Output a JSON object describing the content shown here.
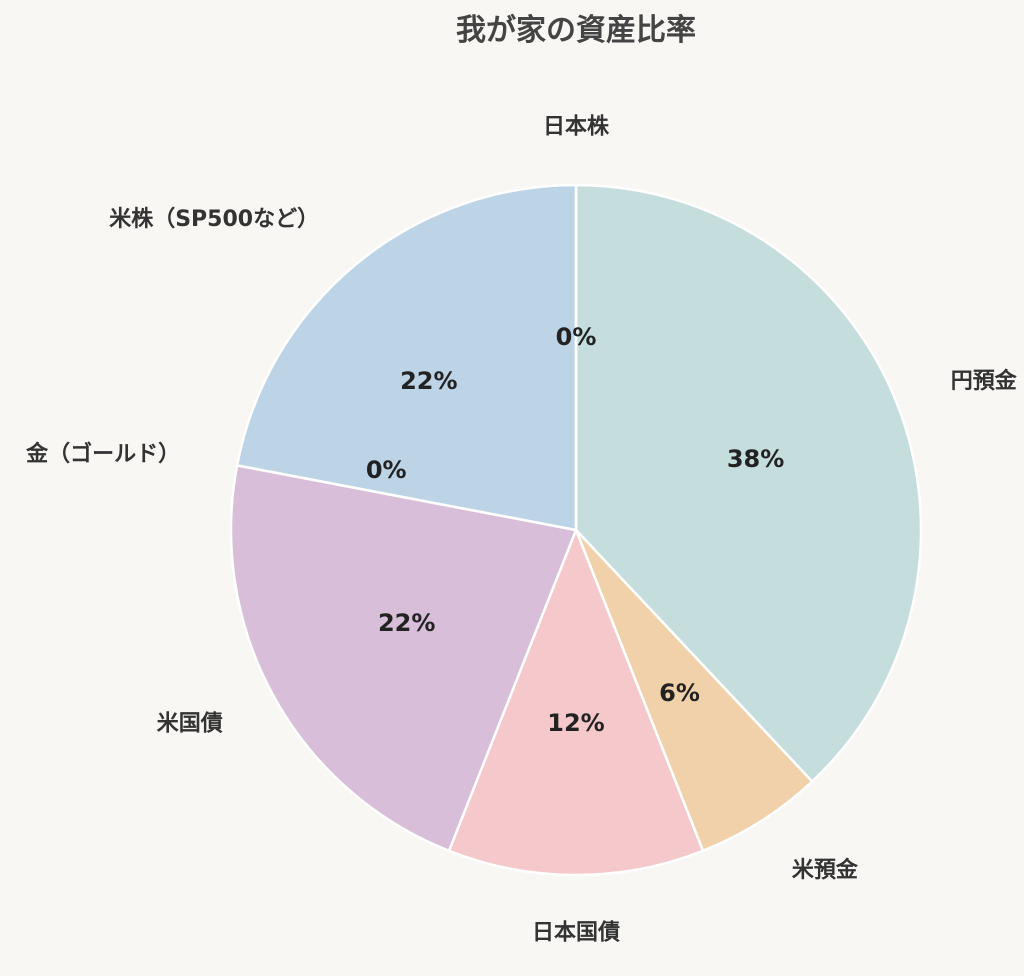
{
  "chart_data": {
    "type": "pie",
    "title": "我が家の資産比率",
    "slices": [
      {
        "label": "円預金",
        "value": 38,
        "pct_label": "38%",
        "color": "#c5dddd"
      },
      {
        "label": "米預金",
        "value": 6,
        "pct_label": "6%",
        "color": "#f1d1aa"
      },
      {
        "label": "日本国債",
        "value": 12,
        "pct_label": "12%",
        "color": "#f5c8cb"
      },
      {
        "label": "米国債",
        "value": 22,
        "pct_label": "22%",
        "color": "#d8bed8"
      },
      {
        "label": "金（ゴールド）",
        "value": 0,
        "pct_label": "0%",
        "color": "#e6d9a8"
      },
      {
        "label": "米株（SP500など）",
        "value": 22,
        "pct_label": "22%",
        "color": "#bdd3e6"
      },
      {
        "label": "日本株",
        "value": 0,
        "pct_label": "0%",
        "color": "#cfe0c8"
      }
    ],
    "start_angle": "12 o'clock",
    "direction": "clockwise",
    "slice_border_color": "#ffffff"
  }
}
